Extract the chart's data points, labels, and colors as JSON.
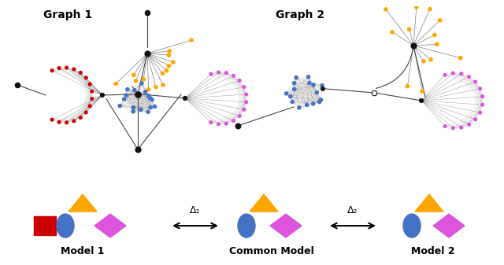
{
  "graph1_label": "Graph 1",
  "graph2_label": "Graph 2",
  "model1_label": "Model 1",
  "common_label": "Common Model",
  "model2_label": "Model 2",
  "orange_color": "#FFA500",
  "blue_color": "#4472C4",
  "red_color": "#CC0000",
  "magenta_color": "#DD55DD",
  "black_color": "#111111",
  "gray_color": "#888888",
  "bg_color": "#FFFFFF",
  "delta1_text": "Δ₁",
  "delta2_text": "Δ₂",
  "n_orange_star": 14,
  "n_blue_clique": 16,
  "n_red_clique": 16,
  "n_magenta_clique": 14,
  "n_orange_star2": 13
}
